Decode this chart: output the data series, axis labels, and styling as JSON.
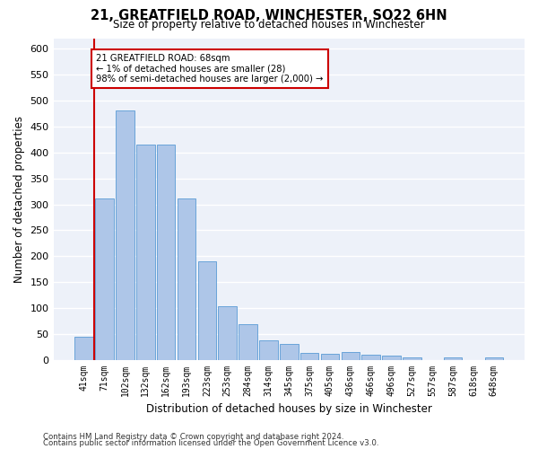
{
  "title": "21, GREATFIELD ROAD, WINCHESTER, SO22 6HN",
  "subtitle": "Size of property relative to detached houses in Winchester",
  "xlabel": "Distribution of detached houses by size in Winchester",
  "ylabel": "Number of detached properties",
  "categories": [
    "41sqm",
    "71sqm",
    "102sqm",
    "132sqm",
    "162sqm",
    "193sqm",
    "223sqm",
    "253sqm",
    "284sqm",
    "314sqm",
    "345sqm",
    "375sqm",
    "405sqm",
    "436sqm",
    "466sqm",
    "496sqm",
    "527sqm",
    "557sqm",
    "587sqm",
    "618sqm",
    "648sqm"
  ],
  "values": [
    45,
    312,
    480,
    415,
    415,
    312,
    190,
    103,
    70,
    38,
    32,
    14,
    13,
    15,
    10,
    8,
    5,
    0,
    5,
    0,
    5
  ],
  "bar_color": "#aec6e8",
  "bar_edge_color": "#5a9bd5",
  "highlight_bar_index": 1,
  "highlight_line_color": "#cc0000",
  "annotation_text": "21 GREATFIELD ROAD: 68sqm\n← 1% of detached houses are smaller (28)\n98% of semi-detached houses are larger (2,000) →",
  "annotation_box_color": "#cc0000",
  "annotation_text_color": "#000000",
  "ylim": [
    0,
    620
  ],
  "yticks": [
    0,
    50,
    100,
    150,
    200,
    250,
    300,
    350,
    400,
    450,
    500,
    550,
    600
  ],
  "background_color": "#edf1f9",
  "grid_color": "#ffffff",
  "footer_line1": "Contains HM Land Registry data © Crown copyright and database right 2024.",
  "footer_line2": "Contains public sector information licensed under the Open Government Licence v3.0."
}
